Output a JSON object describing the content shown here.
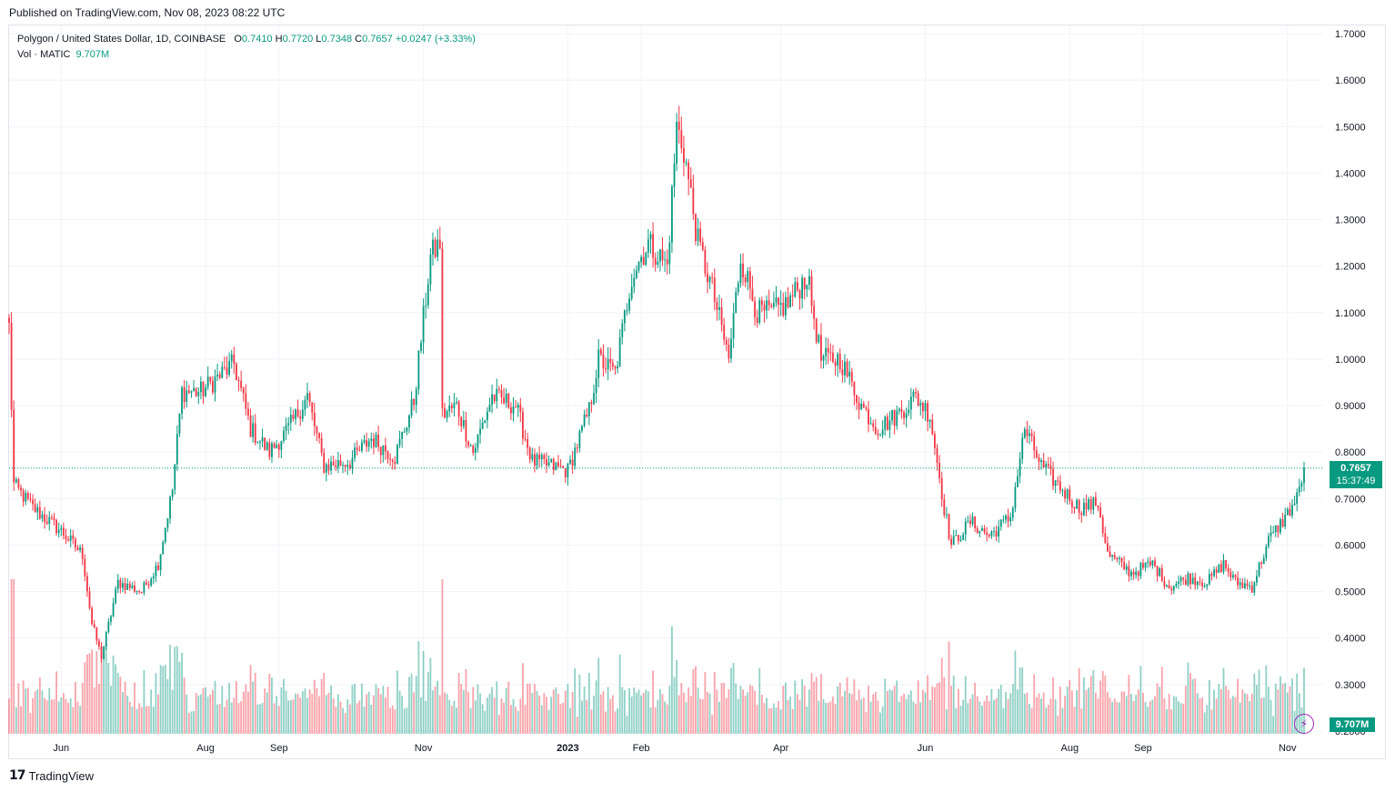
{
  "header": {
    "published": "Published on TradingView.com, Nov 08, 2023 08:22 UTC"
  },
  "legend": {
    "symbol": "Polygon / United States Dollar, 1D, COINBASE",
    "open_label": "O",
    "open": "0.7410",
    "high_label": "H",
    "high": "0.7720",
    "low_label": "L",
    "low": "0.7348",
    "close_label": "C",
    "close": "0.7657",
    "change": "+0.0247 (+3.33%)",
    "vol_label": "Vol · MATIC",
    "vol_value": "9.707M"
  },
  "badges": {
    "last_price": "0.7657",
    "countdown": "15:37:49",
    "volume": "9.707M"
  },
  "footer": {
    "brand": "TradingView"
  },
  "colors": {
    "up": "#089981",
    "down": "#f23645",
    "grid": "#f0f3fa",
    "text": "#131722"
  },
  "chart_data": {
    "type": "candlestick",
    "price_axis_ticks": [
      "1.7000",
      "1.6000",
      "1.5000",
      "1.4000",
      "1.3000",
      "1.2000",
      "1.1000",
      "1.0000",
      "0.9000",
      "0.8000",
      "0.7000",
      "0.6000",
      "0.5000",
      "0.4000",
      "0.3000",
      "0.2000"
    ],
    "time_axis_ticks": [
      "Jun",
      "Aug",
      "Sep",
      "Nov",
      "2023",
      "Feb",
      "Apr",
      "Jun",
      "Aug",
      "Sep",
      "Nov"
    ],
    "ylim": [
      0.2,
      1.7
    ],
    "last_price": 0.7657,
    "series_close_estimates": [
      [
        "2022-05-10",
        1.07
      ],
      [
        "2022-05-12",
        0.73
      ],
      [
        "2022-05-20",
        0.68
      ],
      [
        "2022-06-01",
        0.63
      ],
      [
        "2022-06-10",
        0.58
      ],
      [
        "2022-06-14",
        0.43
      ],
      [
        "2022-06-18",
        0.36
      ],
      [
        "2022-06-25",
        0.52
      ],
      [
        "2022-07-05",
        0.5
      ],
      [
        "2022-07-12",
        0.56
      ],
      [
        "2022-07-18",
        0.72
      ],
      [
        "2022-07-22",
        0.93
      ],
      [
        "2022-07-30",
        0.93
      ],
      [
        "2022-08-13",
        0.99
      ],
      [
        "2022-08-20",
        0.85
      ],
      [
        "2022-08-28",
        0.8
      ],
      [
        "2022-09-05",
        0.85
      ],
      [
        "2022-09-13",
        0.92
      ],
      [
        "2022-09-20",
        0.77
      ],
      [
        "2022-10-01",
        0.78
      ],
      [
        "2022-10-10",
        0.83
      ],
      [
        "2022-10-20",
        0.79
      ],
      [
        "2022-10-28",
        0.91
      ],
      [
        "2022-11-04",
        1.22
      ],
      [
        "2022-11-08",
        1.25
      ],
      [
        "2022-11-09",
        0.88
      ],
      [
        "2022-11-15",
        0.9
      ],
      [
        "2022-11-22",
        0.8
      ],
      [
        "2022-11-30",
        0.92
      ],
      [
        "2022-12-10",
        0.9
      ],
      [
        "2022-12-17",
        0.78
      ],
      [
        "2022-12-25",
        0.77
      ],
      [
        "2023-01-01",
        0.76
      ],
      [
        "2023-01-10",
        0.89
      ],
      [
        "2023-01-14",
        1.0
      ],
      [
        "2023-01-21",
        0.97
      ],
      [
        "2023-01-28",
        1.18
      ],
      [
        "2023-02-04",
        1.25
      ],
      [
        "2023-02-12",
        1.2
      ],
      [
        "2023-02-16",
        1.5
      ],
      [
        "2023-02-19",
        1.45
      ],
      [
        "2023-02-25",
        1.25
      ],
      [
        "2023-03-03",
        1.15
      ],
      [
        "2023-03-10",
        1.0
      ],
      [
        "2023-03-15",
        1.22
      ],
      [
        "2023-03-22",
        1.1
      ],
      [
        "2023-03-28",
        1.1
      ],
      [
        "2023-04-04",
        1.12
      ],
      [
        "2023-04-12",
        1.18
      ],
      [
        "2023-04-18",
        1.0
      ],
      [
        "2023-04-26",
        1.0
      ],
      [
        "2023-05-05",
        0.9
      ],
      [
        "2023-05-12",
        0.85
      ],
      [
        "2023-05-20",
        0.88
      ],
      [
        "2023-05-28",
        0.92
      ],
      [
        "2023-06-03",
        0.88
      ],
      [
        "2023-06-09",
        0.68
      ],
      [
        "2023-06-12",
        0.6
      ],
      [
        "2023-06-20",
        0.65
      ],
      [
        "2023-06-28",
        0.62
      ],
      [
        "2023-07-07",
        0.66
      ],
      [
        "2023-07-13",
        0.85
      ],
      [
        "2023-07-20",
        0.77
      ],
      [
        "2023-07-27",
        0.73
      ],
      [
        "2023-08-05",
        0.68
      ],
      [
        "2023-08-13",
        0.69
      ],
      [
        "2023-08-17",
        0.58
      ],
      [
        "2023-08-27",
        0.54
      ],
      [
        "2023-09-05",
        0.56
      ],
      [
        "2023-09-12",
        0.51
      ],
      [
        "2023-09-20",
        0.53
      ],
      [
        "2023-09-28",
        0.52
      ],
      [
        "2023-10-05",
        0.56
      ],
      [
        "2023-10-10",
        0.52
      ],
      [
        "2023-10-17",
        0.51
      ],
      [
        "2023-10-24",
        0.61
      ],
      [
        "2023-10-31",
        0.66
      ],
      [
        "2023-11-05",
        0.7
      ],
      [
        "2023-11-08",
        0.7657
      ]
    ],
    "volume_visible": true,
    "grid": true
  }
}
